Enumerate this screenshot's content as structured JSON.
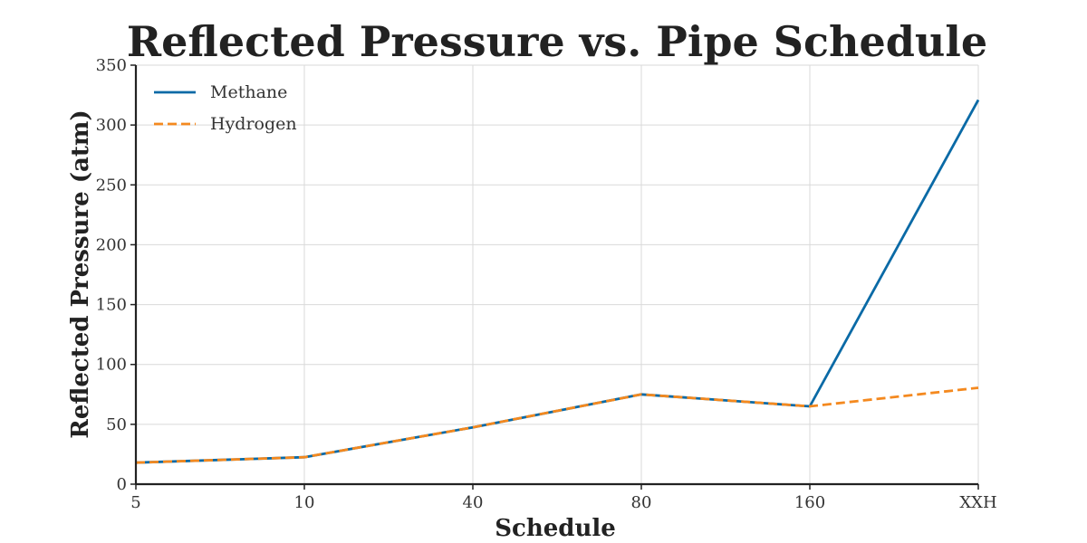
{
  "chart_data": {
    "type": "line",
    "title": "Reflected Pressure vs. Pipe Schedule",
    "xlabel": "Schedule",
    "ylabel": "Reflected Pressure (atm)",
    "categories": [
      "5",
      "10",
      "40",
      "80",
      "160",
      "XXH"
    ],
    "ylim": [
      0,
      350
    ],
    "yticks": [
      0,
      50,
      100,
      150,
      200,
      250,
      300,
      350
    ],
    "grid": true,
    "legend_position": "top-left",
    "series": [
      {
        "name": "Methane",
        "values": [
          18,
          22.5,
          47.5,
          75,
          65,
          321
        ],
        "color": "#0a6aa6",
        "style": "solid"
      },
      {
        "name": "Hydrogen",
        "values": [
          18,
          22.5,
          47.5,
          75,
          65,
          80.5
        ],
        "color": "#f4891f",
        "style": "dashed"
      }
    ]
  }
}
